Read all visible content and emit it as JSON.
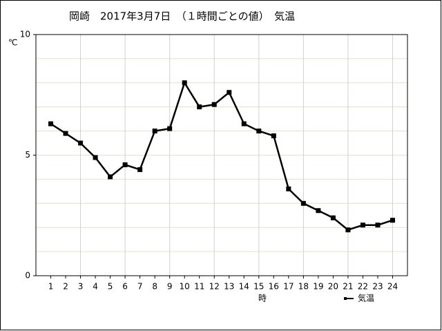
{
  "chart_data": {
    "type": "line",
    "title": "岡崎　2017年3月7日　（１時間ごとの値）　気温",
    "y_unit": "℃",
    "x_label": "時",
    "x": [
      1,
      2,
      3,
      4,
      5,
      6,
      7,
      8,
      9,
      10,
      11,
      12,
      13,
      14,
      15,
      16,
      17,
      18,
      19,
      20,
      21,
      22,
      23,
      24
    ],
    "series": [
      {
        "name": "気温",
        "color": "#000000",
        "values": [
          6.3,
          5.9,
          5.5,
          4.9,
          4.1,
          4.6,
          4.4,
          6.0,
          6.1,
          8.0,
          7.0,
          7.1,
          7.6,
          6.3,
          6.0,
          5.8,
          3.6,
          3.0,
          2.7,
          2.4,
          1.9,
          2.1,
          2.1,
          2.3
        ]
      }
    ],
    "xlim": [
      0,
      25
    ],
    "xticks": [
      1,
      2,
      3,
      4,
      5,
      6,
      7,
      8,
      9,
      10,
      11,
      12,
      13,
      14,
      15,
      16,
      17,
      18,
      19,
      20,
      21,
      22,
      23,
      24
    ],
    "x_grid": [
      3,
      6,
      9,
      12,
      15,
      18,
      21,
      24
    ],
    "ylim": [
      0,
      10
    ],
    "yticks": [
      0,
      5,
      10
    ],
    "y_grid": [
      1,
      2,
      3,
      4,
      5,
      6,
      7,
      8,
      9
    ],
    "grid": true,
    "legend": "bottom-right"
  }
}
